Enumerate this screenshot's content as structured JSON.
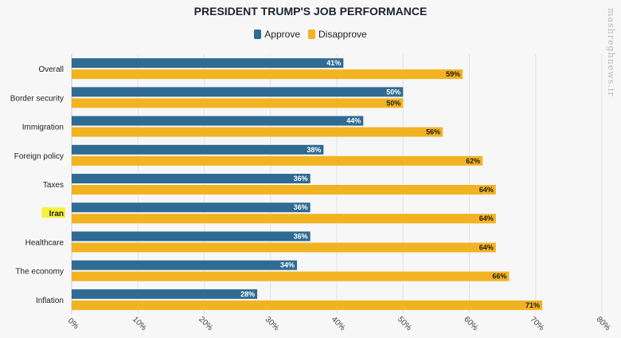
{
  "colors": {
    "approve": "#2f6b92",
    "disapprove": "#f2b321",
    "grid": "#e3e3e6",
    "highlight": "#f7f03a"
  },
  "watermark": "mashreghnews.ir",
  "chart_data": {
    "type": "bar",
    "orientation": "horizontal",
    "title": "PRESIDENT TRUMP'S JOB PERFORMANCE",
    "categories": [
      "Overall",
      "Border security",
      "Immigration",
      "Foreign policy",
      "Taxes",
      "Iran",
      "Healthcare",
      "The economy",
      "Inflation"
    ],
    "highlighted_category": "Iran",
    "series": [
      {
        "name": "Approve",
        "values": [
          41,
          50,
          44,
          38,
          36,
          36,
          36,
          34,
          28
        ]
      },
      {
        "name": "Disapprove",
        "values": [
          59,
          50,
          56,
          62,
          64,
          64,
          64,
          66,
          71
        ]
      }
    ],
    "value_suffix": "%",
    "xlim": [
      0,
      80
    ],
    "xticks": [
      "0%",
      "10%",
      "20%",
      "30%",
      "40%",
      "50%",
      "60%",
      "70%",
      "80%"
    ],
    "grid": true,
    "legend_position": "top-center"
  }
}
